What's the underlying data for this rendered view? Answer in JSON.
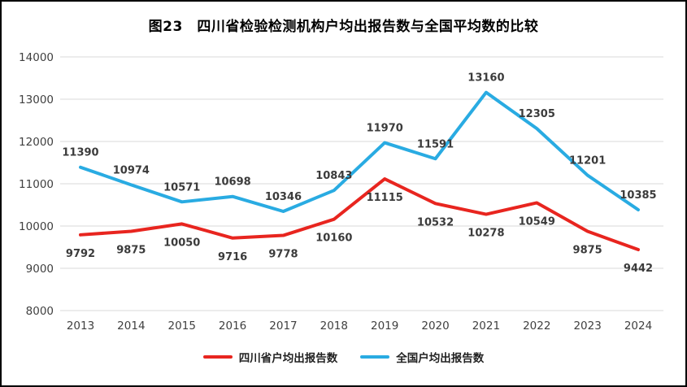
{
  "title": "图23　四川省检验检测机构户均出报告数与全国平均数的比较",
  "colors": {
    "grid": "#d9d9d9",
    "border": "#000000",
    "data_label": "#3b3b3b",
    "tick_label": "#404040"
  },
  "chart_data": {
    "type": "line",
    "title": "图23　四川省检验检测机构户均出报告数与全国平均数的比较",
    "categories": [
      "2013",
      "2014",
      "2015",
      "2016",
      "2017",
      "2018",
      "2019",
      "2020",
      "2021",
      "2022",
      "2023",
      "2024"
    ],
    "series": [
      {
        "name": "四川省户均出报告数",
        "color": "#e8251f",
        "label_position": "below",
        "values": [
          9792,
          9875,
          10050,
          9716,
          9778,
          10160,
          11115,
          10532,
          10278,
          10549,
          9875,
          9442
        ]
      },
      {
        "name": "全国户均出报告数",
        "color": "#29abe2",
        "label_position": "above",
        "values": [
          11390,
          10974,
          10571,
          10698,
          10346,
          10843,
          11970,
          11591,
          13160,
          12305,
          11201,
          10385
        ]
      }
    ],
    "xlabel": "",
    "ylabel": "",
    "ylim": [
      8000,
      14000
    ],
    "ytick_step": 1000,
    "grid": true,
    "legend_position": "bottom"
  }
}
